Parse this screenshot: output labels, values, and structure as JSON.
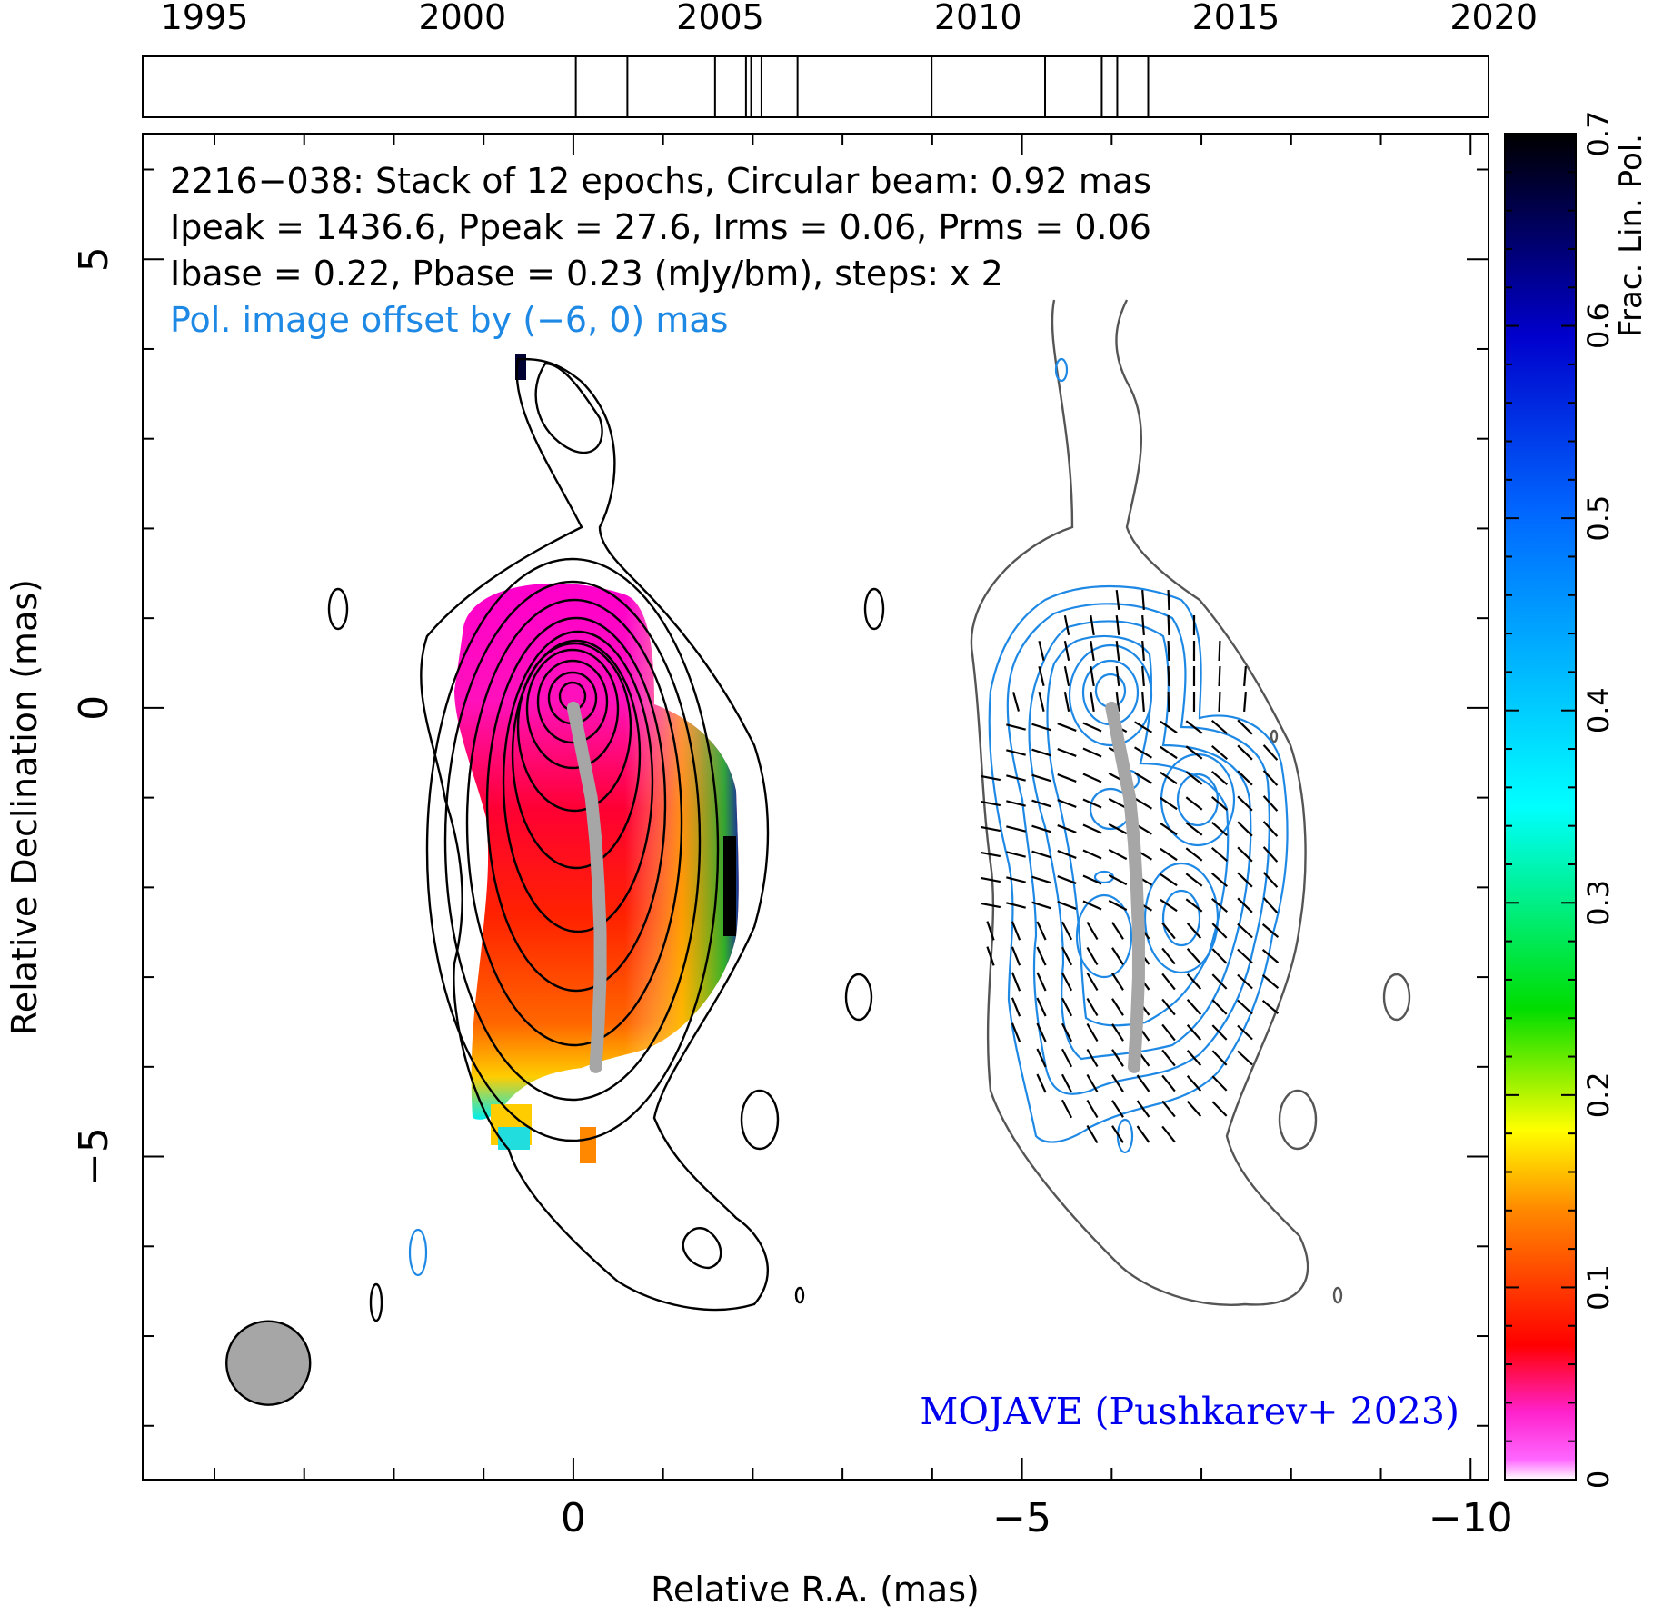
{
  "chart_data": {
    "type": "heatmap",
    "source": "2216-038",
    "annotations": {
      "line1": "2216−038: Stack of 12 epochs, Circular beam: 0.92 mas",
      "line2": "Ipeak = 1436.6, Ppeak = 27.6, Irms = 0.06, Prms = 0.06",
      "line3": "Ibase = 0.22, Pbase = 0.23 (mJy/bm), steps: x 2",
      "line4": "Pol. image offset by (−6, 0) mas",
      "credit": "MOJAVE (Pushkarev+ 2023)"
    },
    "epoch_axis": {
      "range": [
        1993.8,
        2019.9
      ],
      "ticks": [
        1995,
        2000,
        2005,
        2010,
        2015,
        2020
      ],
      "tick_labels": [
        "1995",
        "2000",
        "2005",
        "2010",
        "2015",
        "2020"
      ],
      "epochs": [
        2002.2,
        2003.2,
        2004.9,
        2005.5,
        2005.6,
        2005.8,
        2006.5,
        2009.1,
        2011.3,
        2012.4,
        2012.7,
        2013.3
      ]
    },
    "xaxis": {
      "label": "Relative R.A. (mas)",
      "range": [
        4.8,
        -10.2
      ],
      "ticks": [
        0,
        -5,
        -10
      ],
      "tick_labels": [
        "0",
        "−5",
        "−10"
      ]
    },
    "yaxis": {
      "label": "Relative Declination (mas)",
      "range": [
        -8.6,
        6.4
      ],
      "ticks": [
        5,
        0,
        -5
      ],
      "tick_labels": [
        "5",
        "0",
        "−5"
      ]
    },
    "colorbar": {
      "label": "Frac. Lin. Pol.",
      "range": [
        0,
        0.7
      ],
      "ticks": [
        0,
        0.1,
        0.2,
        0.3,
        0.4,
        0.5,
        0.6,
        0.7
      ],
      "tick_labels": [
        "0",
        "0.1",
        "0.2",
        "0.3",
        "0.4",
        "0.5",
        "0.6",
        "0.7"
      ]
    },
    "beam": {
      "ra": 3.4,
      "dec": -7.3,
      "diameter_mas": 0.92
    },
    "ridge_line": [
      {
        "ra": 0.0,
        "dec": 0.0
      },
      {
        "ra": -0.1,
        "dec": -0.5
      },
      {
        "ra": -0.2,
        "dec": -1.0
      },
      {
        "ra": -0.25,
        "dec": -1.5
      },
      {
        "ra": -0.28,
        "dec": -2.0
      },
      {
        "ra": -0.3,
        "dec": -2.5
      },
      {
        "ra": -0.3,
        "dec": -3.0
      },
      {
        "ra": -0.28,
        "dec": -3.5
      },
      {
        "ra": -0.25,
        "dec": -4.0
      }
    ],
    "colors": {
      "stokes_i_contour": "#000000",
      "polarized_contour": "#1e88e5",
      "total_contour_pol_panel": "#555555",
      "ridge": "#a6a6a6",
      "beam_fill": "#a6a6a6",
      "credit_text": "#0000ee"
    }
  }
}
